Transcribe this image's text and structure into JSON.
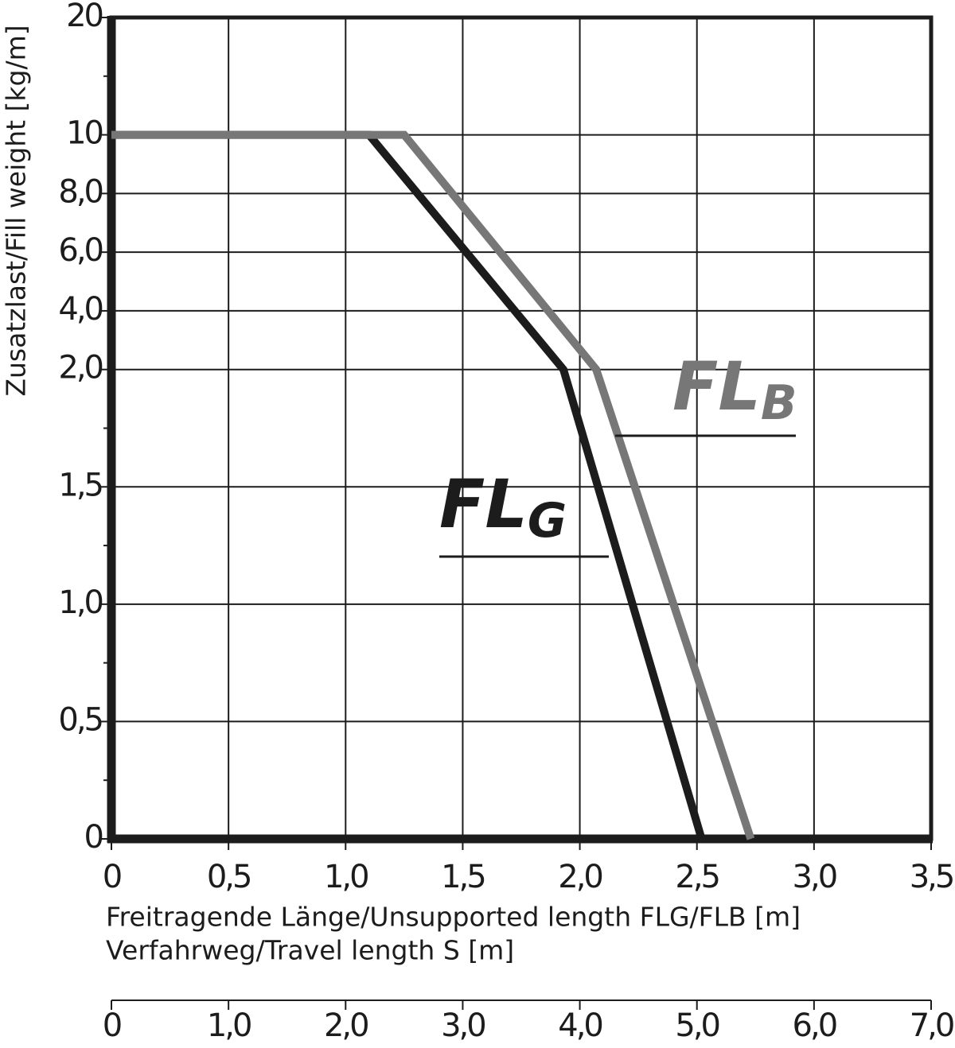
{
  "chart_data": {
    "type": "line",
    "y_label": "Zusatzlast/Fill weight [kg/m]",
    "x_label": "Freitragende Länge/Unsupported length FLG/FLB [m]",
    "x2_label": "Verfahrweg/Travel length S [m]",
    "xlim": [
      0,
      3.5
    ],
    "xticks": [
      0,
      {
        "value": 0.5,
        "label": "0,5"
      },
      {
        "value": 1.0,
        "label": "1,0"
      },
      {
        "value": 1.5,
        "label": "1,5"
      },
      {
        "value": 2.0,
        "label": "2,0"
      },
      {
        "value": 2.5,
        "label": "2,5"
      },
      {
        "value": 3.0,
        "label": "3,0"
      },
      {
        "value": 3.5,
        "label": "3,5"
      }
    ],
    "x2lim": [
      0,
      7.0
    ],
    "x2ticks": [
      0,
      {
        "value": 1.0,
        "label": "1,0"
      },
      {
        "value": 2.0,
        "label": "2,0"
      },
      {
        "value": 3.0,
        "label": "3,0"
      },
      {
        "value": 4.0,
        "label": "4,0"
      },
      {
        "value": 5.0,
        "label": "5,0"
      },
      {
        "value": 6.0,
        "label": "6,0"
      },
      {
        "value": 7.0,
        "label": "7,0"
      }
    ],
    "ylim": [
      0,
      20
    ],
    "yticks": [
      0,
      {
        "value": 0.5,
        "label": "0,5"
      },
      {
        "value": 1.0,
        "label": "1,0"
      },
      {
        "value": 1.5,
        "label": "1,5"
      },
      {
        "value": 2.0,
        "label": "2,0"
      },
      {
        "value": 4.0,
        "label": "4,0"
      },
      {
        "value": 6.0,
        "label": "6,0"
      },
      {
        "value": 8.0,
        "label": "8,0"
      },
      10,
      20
    ],
    "yminorticks": [
      0.25,
      0.75,
      1.25,
      1.75,
      15
    ],
    "grid": true,
    "series": [
      {
        "name": "FL",
        "subscript": "G",
        "color": "#1c1c1c",
        "x": [
          0,
          1.1,
          1.93,
          2.52
        ],
        "values": [
          10,
          10,
          2.0,
          0
        ]
      },
      {
        "name": "FL",
        "subscript": "B",
        "color": "#777777",
        "x": [
          0,
          1.25,
          2.07,
          2.73
        ],
        "values": [
          10,
          10,
          2.0,
          0
        ]
      }
    ]
  }
}
